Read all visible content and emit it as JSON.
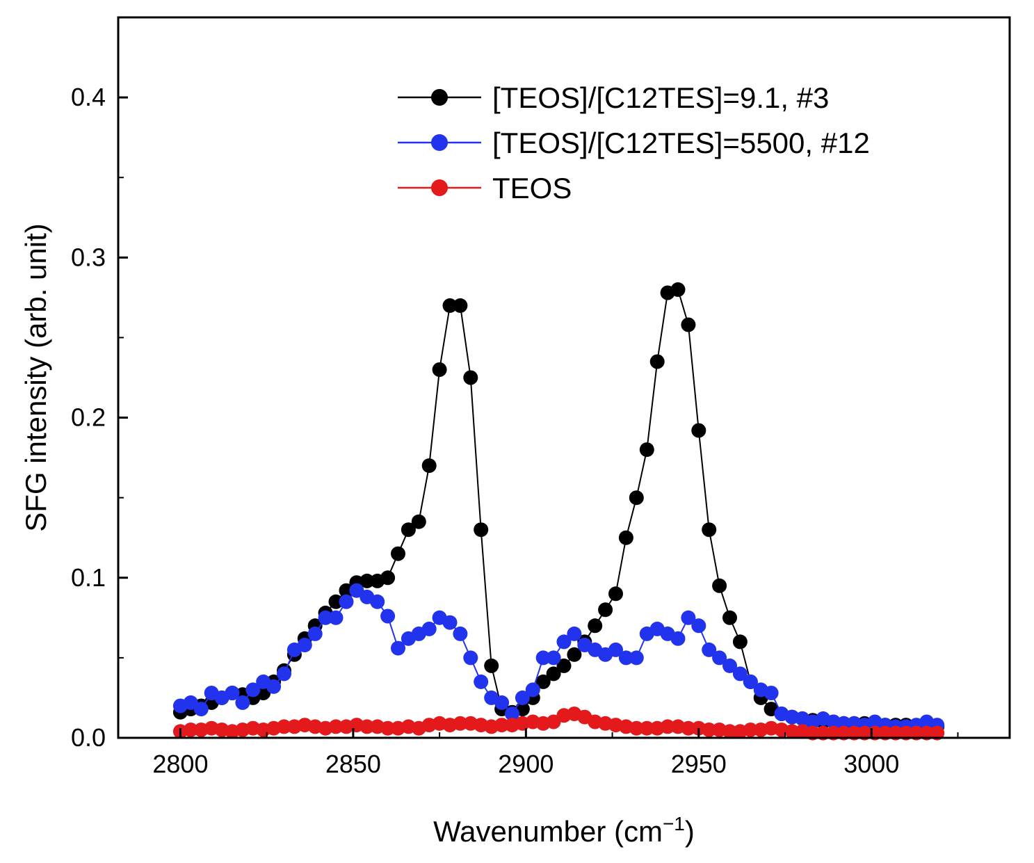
{
  "chart_data": {
    "type": "line",
    "title": "",
    "xlabel": "Wavenumber (cm",
    "xlabel_sup": "−1",
    "xlabel_close": ")",
    "ylabel": "SFG intensity (arb. unit)",
    "xlim": [
      2782,
      3040
    ],
    "ylim": [
      0,
      0.45
    ],
    "xticks": [
      2800,
      2850,
      2900,
      2950,
      3000
    ],
    "xtick_labels": [
      "2800",
      "2850",
      "2900",
      "2950",
      "3000"
    ],
    "yticks": [
      0.0,
      0.1,
      0.2,
      0.3,
      0.4
    ],
    "ytick_labels": [
      "0.0",
      "0.1",
      "0.2",
      "0.3",
      "0.4"
    ],
    "legend_position": "top-right",
    "series": [
      {
        "name": "[TEOS]/[C12TES]=9.1, #3",
        "color": "#000000",
        "marker": "circle",
        "x": [
          2800,
          2803,
          2806,
          2809,
          2812,
          2815,
          2818,
          2821,
          2824,
          2827,
          2830,
          2833,
          2836,
          2839,
          2842,
          2845,
          2848,
          2851,
          2854,
          2857,
          2860,
          2863,
          2866,
          2869,
          2872,
          2875,
          2878,
          2881,
          2884,
          2887,
          2890,
          2893,
          2896,
          2899,
          2902,
          2905,
          2908,
          2911,
          2914,
          2917,
          2920,
          2923,
          2926,
          2929,
          2932,
          2935,
          2938,
          2941,
          2944,
          2947,
          2950,
          2953,
          2956,
          2959,
          2962,
          2965,
          2968,
          2971,
          2974,
          2977,
          2980,
          2983,
          2986,
          2989,
          2992,
          2995,
          2998,
          3001,
          3004,
          3007,
          3010,
          3013,
          3016,
          3019
        ],
        "values": [
          0.016,
          0.018,
          0.02,
          0.022,
          0.025,
          0.028,
          0.027,
          0.025,
          0.028,
          0.035,
          0.042,
          0.052,
          0.062,
          0.07,
          0.078,
          0.085,
          0.092,
          0.097,
          0.098,
          0.098,
          0.1,
          0.115,
          0.13,
          0.135,
          0.17,
          0.23,
          0.27,
          0.27,
          0.225,
          0.13,
          0.045,
          0.018,
          0.016,
          0.018,
          0.025,
          0.035,
          0.04,
          0.045,
          0.052,
          0.06,
          0.07,
          0.08,
          0.09,
          0.125,
          0.15,
          0.18,
          0.235,
          0.278,
          0.28,
          0.258,
          0.192,
          0.13,
          0.095,
          0.075,
          0.06,
          0.035,
          0.025,
          0.018,
          0.015,
          0.013,
          0.012,
          0.011,
          0.01,
          0.01,
          0.009,
          0.009,
          0.009,
          0.008,
          0.008,
          0.008,
          0.008,
          0.007,
          0.007,
          0.007
        ]
      },
      {
        "name": "[TEOS]/[C12TES]=5500, #12",
        "color": "#2233ee",
        "marker": "circle",
        "x": [
          2800,
          2803,
          2806,
          2809,
          2812,
          2815,
          2818,
          2821,
          2824,
          2827,
          2830,
          2833,
          2836,
          2839,
          2842,
          2845,
          2848,
          2851,
          2854,
          2857,
          2860,
          2863,
          2866,
          2869,
          2872,
          2875,
          2878,
          2881,
          2884,
          2887,
          2890,
          2893,
          2896,
          2899,
          2902,
          2905,
          2908,
          2911,
          2914,
          2917,
          2920,
          2923,
          2926,
          2929,
          2932,
          2935,
          2938,
          2941,
          2944,
          2947,
          2950,
          2953,
          2956,
          2959,
          2962,
          2965,
          2968,
          2971,
          2974,
          2977,
          2980,
          2983,
          2986,
          2989,
          2992,
          2995,
          2998,
          3001,
          3004,
          3007,
          3010,
          3013,
          3016,
          3019
        ],
        "values": [
          0.02,
          0.022,
          0.018,
          0.028,
          0.025,
          0.028,
          0.022,
          0.03,
          0.035,
          0.032,
          0.04,
          0.055,
          0.058,
          0.065,
          0.075,
          0.075,
          0.085,
          0.092,
          0.088,
          0.085,
          0.076,
          0.056,
          0.062,
          0.065,
          0.068,
          0.075,
          0.072,
          0.065,
          0.05,
          0.035,
          0.025,
          0.022,
          0.015,
          0.025,
          0.03,
          0.05,
          0.05,
          0.06,
          0.065,
          0.058,
          0.055,
          0.052,
          0.055,
          0.05,
          0.05,
          0.065,
          0.068,
          0.065,
          0.062,
          0.075,
          0.07,
          0.055,
          0.05,
          0.045,
          0.04,
          0.035,
          0.03,
          0.028,
          0.015,
          0.013,
          0.012,
          0.01,
          0.012,
          0.01,
          0.009,
          0.009,
          0.008,
          0.01,
          0.008,
          0.007,
          0.007,
          0.008,
          0.01,
          0.008
        ]
      },
      {
        "name": "TEOS",
        "color": "#e3191c",
        "marker": "circle",
        "x": [
          2800,
          2803,
          2806,
          2809,
          2812,
          2815,
          2818,
          2821,
          2824,
          2827,
          2830,
          2833,
          2836,
          2839,
          2842,
          2845,
          2848,
          2851,
          2854,
          2857,
          2860,
          2863,
          2866,
          2869,
          2872,
          2875,
          2878,
          2881,
          2884,
          2887,
          2890,
          2893,
          2896,
          2899,
          2902,
          2905,
          2908,
          2911,
          2914,
          2917,
          2920,
          2923,
          2926,
          2929,
          2932,
          2935,
          2938,
          2941,
          2944,
          2947,
          2950,
          2953,
          2956,
          2959,
          2962,
          2965,
          2968,
          2971,
          2974,
          2977,
          2980,
          2983,
          2986,
          2989,
          2992,
          2995,
          2998,
          3001,
          3004,
          3007,
          3010,
          3013,
          3016,
          3019
        ],
        "values": [
          0.004,
          0.005,
          0.005,
          0.006,
          0.005,
          0.004,
          0.005,
          0.006,
          0.005,
          0.006,
          0.007,
          0.007,
          0.008,
          0.007,
          0.006,
          0.007,
          0.007,
          0.008,
          0.007,
          0.007,
          0.006,
          0.006,
          0.007,
          0.006,
          0.008,
          0.009,
          0.008,
          0.009,
          0.009,
          0.008,
          0.007,
          0.008,
          0.008,
          0.009,
          0.01,
          0.009,
          0.01,
          0.014,
          0.015,
          0.013,
          0.01,
          0.009,
          0.008,
          0.007,
          0.006,
          0.006,
          0.006,
          0.007,
          0.007,
          0.006,
          0.006,
          0.005,
          0.005,
          0.004,
          0.004,
          0.005,
          0.005,
          0.006,
          0.005,
          0.004,
          0.004,
          0.003,
          0.003,
          0.003,
          0.003,
          0.003,
          0.003,
          0.003,
          0.003,
          0.003,
          0.003,
          0.003,
          0.003,
          0.003
        ]
      }
    ]
  }
}
